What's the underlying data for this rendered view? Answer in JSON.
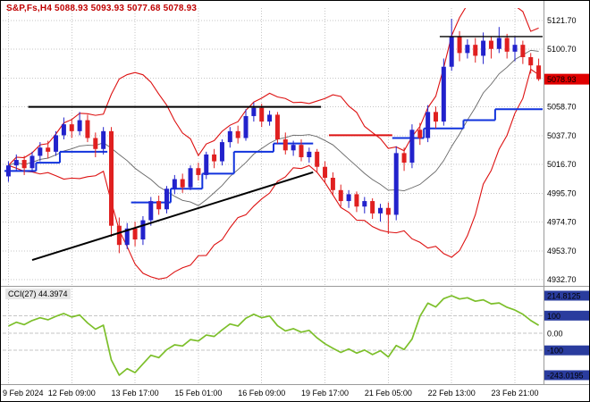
{
  "window": {
    "title_overlay": "S&P,Fs,H4 5088.93 5093.93 5077.68 5078.93"
  },
  "indicator_header": "CCI(27) 44.3974",
  "colors": {
    "title": "#c00000",
    "candle_up": "#2222cc",
    "candle_down": "#e02020",
    "band": "#dd1111",
    "band_mid": "#666666",
    "step_support": "#1133dd",
    "step_resistance": "#dd1111",
    "cci_line": "#7cbf2a",
    "grid": "#c6c6c6",
    "tag_bg": "#e00000",
    "box_bg": "#2a3c9e",
    "separator": "#9a9a9a",
    "black_line": "#000000"
  },
  "price_axis": {
    "labels": [
      {
        "text": "5121.70",
        "value": 5121.7
      },
      {
        "text": "5100.70",
        "value": 5100.7
      },
      {
        "text": "5058.70",
        "value": 5058.7
      },
      {
        "text": "5037.70",
        "value": 5037.7
      },
      {
        "text": "5016.70",
        "value": 5016.7
      },
      {
        "text": "4995.70",
        "value": 4995.7
      },
      {
        "text": "4974.70",
        "value": 4974.7
      },
      {
        "text": "4953.70",
        "value": 4953.7
      },
      {
        "text": "4932.70",
        "value": 4932.7
      }
    ],
    "current_price": {
      "text": "5078.93",
      "value": 5078.93
    }
  },
  "indicator_axis": {
    "labels": [
      {
        "text": "214.8125",
        "value": 214.8125,
        "boxed": true
      },
      {
        "text": "100",
        "value": 100,
        "boxed": true
      },
      {
        "text": "0.00",
        "value": 0,
        "boxed": false
      },
      {
        "text": "-100",
        "value": -100,
        "boxed": true
      },
      {
        "text": "-243.0195",
        "value": -243.0195,
        "boxed": true
      }
    ]
  },
  "time_axis": {
    "labels": [
      "9 Feb 2024",
      "12 Feb 09:00",
      "13 Feb 17:00",
      "15 Feb 01:00",
      "16 Feb 09:00",
      "19 Feb 17:00",
      "21 Feb 05:00",
      "22 Feb 13:00",
      "23 Feb 21:00"
    ]
  },
  "chart_data": {
    "type": "candlestick",
    "symbol": "S&P,Fs",
    "timeframe": "H4",
    "current_ohlc": {
      "open": 5088.93,
      "high": 5093.93,
      "low": 5077.68,
      "close": 5078.93
    },
    "grid_prices": [
      5121.7,
      5100.7,
      5079.7,
      5058.7,
      5037.7,
      5016.7,
      4995.7,
      4974.7,
      4953.7,
      4932.7
    ],
    "time_grid_indices": [
      0,
      8,
      16,
      24,
      32,
      40,
      48,
      56,
      64
    ],
    "candles": [
      [
        5008,
        5019,
        5004,
        5016
      ],
      [
        5016,
        5024,
        5012,
        5020
      ],
      [
        5020,
        5023,
        5009,
        5014
      ],
      [
        5014,
        5026,
        5011,
        5023
      ],
      [
        5023,
        5033,
        5019,
        5029
      ],
      [
        5029,
        5034,
        5021,
        5026
      ],
      [
        5026,
        5041,
        5023,
        5038
      ],
      [
        5038,
        5051,
        5035,
        5046
      ],
      [
        5046,
        5050,
        5036,
        5041
      ],
      [
        5041,
        5055,
        5038,
        5049
      ],
      [
        5049,
        5053,
        5033,
        5036
      ],
      [
        5036,
        5040,
        5022,
        5028
      ],
      [
        5028,
        5044,
        5024,
        5041
      ],
      [
        5041,
        5044,
        4964,
        4972
      ],
      [
        4972,
        4978,
        4952,
        4958
      ],
      [
        4958,
        4974,
        4955,
        4970
      ],
      [
        4970,
        4975,
        4957,
        4962
      ],
      [
        4962,
        4979,
        4958,
        4976
      ],
      [
        4976,
        4993,
        4972,
        4990
      ],
      [
        4990,
        4994,
        4980,
        4984
      ],
      [
        4984,
        5001,
        4981,
        4999
      ],
      [
        4999,
        5009,
        4995,
        5006
      ],
      [
        5006,
        5010,
        4996,
        5000
      ],
      [
        5000,
        5016,
        4998,
        5014
      ],
      [
        5014,
        5018,
        5005,
        5009
      ],
      [
        5009,
        5026,
        5006,
        5024
      ],
      [
        5024,
        5028,
        5014,
        5019
      ],
      [
        5019,
        5035,
        5016,
        5033
      ],
      [
        5033,
        5044,
        5029,
        5041
      ],
      [
        5041,
        5045,
        5032,
        5036
      ],
      [
        5036,
        5057,
        5034,
        5052
      ],
      [
        5052,
        5062,
        5048,
        5058
      ],
      [
        5058,
        5061,
        5044,
        5048
      ],
      [
        5048,
        5056,
        5045,
        5053
      ],
      [
        5053,
        5055,
        5032,
        5035
      ],
      [
        5035,
        5040,
        5024,
        5027
      ],
      [
        5027,
        5034,
        5023,
        5031
      ],
      [
        5031,
        5035,
        5019,
        5022
      ],
      [
        5022,
        5029,
        5018,
        5026
      ],
      [
        5026,
        5028,
        5011,
        5015
      ],
      [
        5015,
        5019,
        5003,
        5007
      ],
      [
        5007,
        5011,
        4994,
        4998
      ],
      [
        4998,
        5002,
        4986,
        4990
      ],
      [
        4990,
        4998,
        4985,
        4995
      ],
      [
        4995,
        4997,
        4982,
        4986
      ],
      [
        4986,
        4993,
        4981,
        4990
      ],
      [
        4990,
        4992,
        4977,
        4981
      ],
      [
        4981,
        4988,
        4975,
        4985
      ],
      [
        4985,
        4989,
        4966,
        4980
      ],
      [
        4980,
        5030,
        4976,
        5025
      ],
      [
        5025,
        5029,
        5012,
        5018
      ],
      [
        5018,
        5046,
        5014,
        5042
      ],
      [
        5042,
        5047,
        5031,
        5036
      ],
      [
        5036,
        5060,
        5033,
        5055
      ],
      [
        5055,
        5059,
        5043,
        5048
      ],
      [
        5048,
        5094,
        5045,
        5088
      ],
      [
        5088,
        5123,
        5085,
        5110
      ],
      [
        5110,
        5114,
        5092,
        5098
      ],
      [
        5098,
        5108,
        5094,
        5104
      ],
      [
        5104,
        5109,
        5091,
        5096
      ],
      [
        5096,
        5113,
        5090,
        5107
      ],
      [
        5107,
        5110,
        5094,
        5101
      ],
      [
        5101,
        5117,
        5098,
        5109
      ],
      [
        5109,
        5112,
        5094,
        5099
      ],
      [
        5099,
        5110,
        5092,
        5104
      ],
      [
        5104,
        5107,
        5090,
        5095
      ],
      [
        5095,
        5098,
        5083,
        5089
      ],
      [
        5088.93,
        5093.93,
        5077.68,
        5078.93
      ]
    ],
    "bollinger": {
      "period": 12,
      "deviation": 2
    },
    "black_lines": [
      {
        "from": 3,
        "to": 40,
        "price": 5058.7,
        "width": 2
      },
      {
        "from": 55,
        "to": 68,
        "price": 5110,
        "width": 1.3
      }
    ],
    "trendline": {
      "from_index": 3,
      "from_price": 4947,
      "to_index": 38.5,
      "to_price": 5011,
      "width": 2
    },
    "step_segments": [
      {
        "from": 0,
        "to": 4,
        "price": 5012,
        "color": "support"
      },
      {
        "from": 4,
        "to": 7,
        "price": 5018,
        "color": "support"
      },
      {
        "from": 7,
        "to": 13,
        "price": 5026,
        "color": "support"
      },
      {
        "from": 16,
        "to": 21,
        "price": 4989,
        "color": "support"
      },
      {
        "from": 21,
        "to": 25,
        "price": 4999,
        "color": "support"
      },
      {
        "from": 25,
        "to": 29,
        "price": 5010,
        "color": "support"
      },
      {
        "from": 29,
        "to": 34,
        "price": 5026,
        "color": "support"
      },
      {
        "from": 34,
        "to": 39,
        "price": 5032,
        "color": "support"
      },
      {
        "from": 41,
        "to": 49,
        "price": 5038,
        "color": "resistance"
      },
      {
        "from": 49,
        "to": 53,
        "price": 5036,
        "color": "support"
      },
      {
        "from": 53,
        "to": 58,
        "price": 5043,
        "color": "support"
      },
      {
        "from": 58,
        "to": 62,
        "price": 5049,
        "color": "support"
      },
      {
        "from": 62,
        "to": 68,
        "price": 5057,
        "color": "support"
      }
    ],
    "cci": {
      "name": "CCI",
      "period": 27,
      "current": 44.3974,
      "max": 214.8125,
      "min": -243.0195,
      "levels": [
        100,
        0,
        -100
      ],
      "values": [
        40,
        62,
        48,
        72,
        88,
        76,
        96,
        112,
        92,
        104,
        58,
        22,
        45,
        -155,
        -243.0195,
        -205,
        -228,
        -178,
        -128,
        -142,
        -96,
        -68,
        -75,
        -38,
        -46,
        -12,
        -20,
        18,
        52,
        40,
        85,
        108,
        88,
        98,
        42,
        12,
        25,
        5,
        15,
        -28,
        -62,
        -88,
        -112,
        -92,
        -116,
        -98,
        -124,
        -102,
        -138,
        -72,
        -95,
        -35,
        96,
        172,
        150,
        198,
        214.8125,
        196,
        203,
        183,
        191,
        168,
        173,
        148,
        132,
        108,
        72,
        44.3974
      ]
    }
  }
}
